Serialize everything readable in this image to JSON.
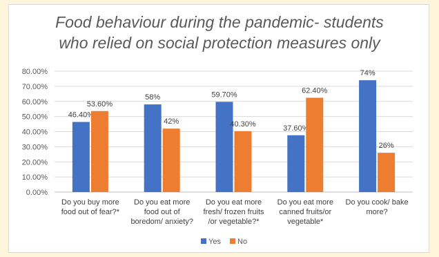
{
  "chart_data": {
    "type": "bar",
    "title": [
      "Food behaviour during the pandemic- students",
      "who relied on social protection measures only"
    ],
    "categories": [
      [
        "Do you buy more",
        "food out of fear?*"
      ],
      [
        "Do you eat more",
        "food out of",
        "boredom/ anxiety?"
      ],
      [
        "Do you eat more",
        "fresh/ frozen fruits",
        "/or vegetable?*"
      ],
      [
        "Do you eat more",
        "canned fruits/or",
        "vegetable*"
      ],
      [
        "Do you cook/ bake",
        "more?"
      ]
    ],
    "series": [
      {
        "name": "Yes",
        "color": "#4472c4",
        "values": [
          46.4,
          58,
          59.7,
          37.6,
          74
        ],
        "labels": [
          "46.40%",
          "58%",
          "59.70%",
          "37.60%",
          "74%"
        ]
      },
      {
        "name": "No",
        "color": "#ed7d31",
        "values": [
          53.6,
          42,
          40.3,
          62.4,
          26
        ],
        "labels": [
          "53.60%",
          "42%",
          "40.30%",
          "62.40%",
          "26%"
        ]
      }
    ],
    "ylim": [
      0,
      80
    ],
    "yticks": [
      "0.00%",
      "10.00%",
      "20.00%",
      "30.00%",
      "40.00%",
      "50.00%",
      "60.00%",
      "70.00%",
      "80.00%"
    ],
    "grid": true,
    "legend": "bottom"
  }
}
